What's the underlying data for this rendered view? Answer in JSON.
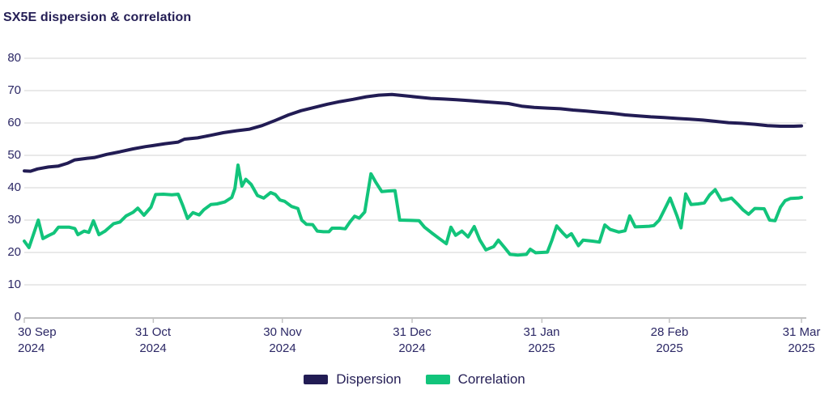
{
  "title": "SX5E dispersion & correlation",
  "colors": {
    "dispersion": "#221c54",
    "correlation": "#12c47b",
    "text": "#2b2765",
    "gridline": "#dcdcdc",
    "axis": "#c2c2c2",
    "background": "#ffffff"
  },
  "legend": {
    "items": [
      "Dispersion",
      "Correlation"
    ]
  },
  "chart_data": {
    "type": "line",
    "title": "SX5E dispersion & correlation",
    "xlabel": "",
    "ylabel": "",
    "ylim": [
      0,
      80
    ],
    "grid": "horizontal",
    "legend_position": "bottom-center",
    "y_ticks": [
      0,
      10,
      20,
      30,
      40,
      50,
      60,
      70,
      80
    ],
    "x_ticks": [
      {
        "line1": "30 Sep",
        "line2": "2024",
        "t": 0.0
      },
      {
        "line1": "31 Oct",
        "line2": "2024",
        "t": 0.166
      },
      {
        "line1": "30 Nov",
        "line2": "2024",
        "t": 0.332
      },
      {
        "line1": "31 Dec",
        "line2": "2024",
        "t": 0.499
      },
      {
        "line1": "31 Jan",
        "line2": "2025",
        "t": 0.666
      },
      {
        "line1": "28 Feb",
        "line2": "2025",
        "t": 0.83
      },
      {
        "line1": "31 Mar",
        "line2": "2025",
        "t": 1.0
      }
    ],
    "series": [
      {
        "name": "Dispersion",
        "color": "#221c54",
        "points": [
          [
            0.0,
            45.2
          ],
          [
            0.008,
            45.1
          ],
          [
            0.017,
            45.8
          ],
          [
            0.031,
            46.4
          ],
          [
            0.044,
            46.7
          ],
          [
            0.056,
            47.6
          ],
          [
            0.065,
            48.6
          ],
          [
            0.081,
            49.1
          ],
          [
            0.09,
            49.3
          ],
          [
            0.106,
            50.3
          ],
          [
            0.123,
            51.1
          ],
          [
            0.14,
            52.0
          ],
          [
            0.156,
            52.7
          ],
          [
            0.165,
            53.0
          ],
          [
            0.181,
            53.6
          ],
          [
            0.198,
            54.1
          ],
          [
            0.206,
            55.0
          ],
          [
            0.223,
            55.4
          ],
          [
            0.24,
            56.2
          ],
          [
            0.256,
            57.0
          ],
          [
            0.273,
            57.6
          ],
          [
            0.29,
            58.1
          ],
          [
            0.306,
            59.2
          ],
          [
            0.323,
            60.8
          ],
          [
            0.34,
            62.5
          ],
          [
            0.356,
            63.8
          ],
          [
            0.373,
            64.8
          ],
          [
            0.39,
            65.8
          ],
          [
            0.406,
            66.6
          ],
          [
            0.423,
            67.3
          ],
          [
            0.44,
            68.1
          ],
          [
            0.456,
            68.6
          ],
          [
            0.473,
            68.8
          ],
          [
            0.49,
            68.4
          ],
          [
            0.506,
            68.0
          ],
          [
            0.523,
            67.6
          ],
          [
            0.54,
            67.4
          ],
          [
            0.556,
            67.2
          ],
          [
            0.573,
            66.9
          ],
          [
            0.59,
            66.6
          ],
          [
            0.606,
            66.3
          ],
          [
            0.623,
            66.0
          ],
          [
            0.64,
            65.2
          ],
          [
            0.656,
            64.8
          ],
          [
            0.673,
            64.6
          ],
          [
            0.69,
            64.4
          ],
          [
            0.706,
            64.0
          ],
          [
            0.723,
            63.7
          ],
          [
            0.74,
            63.3
          ],
          [
            0.756,
            63.0
          ],
          [
            0.773,
            62.5
          ],
          [
            0.79,
            62.2
          ],
          [
            0.806,
            61.9
          ],
          [
            0.823,
            61.7
          ],
          [
            0.84,
            61.4
          ],
          [
            0.856,
            61.2
          ],
          [
            0.873,
            60.9
          ],
          [
            0.89,
            60.5
          ],
          [
            0.906,
            60.1
          ],
          [
            0.923,
            59.9
          ],
          [
            0.94,
            59.6
          ],
          [
            0.956,
            59.2
          ],
          [
            0.973,
            59.0
          ],
          [
            0.99,
            59.0
          ],
          [
            1.0,
            59.1
          ]
        ]
      },
      {
        "name": "Correlation",
        "color": "#12c47b",
        "points": [
          [
            0.0,
            23.5
          ],
          [
            0.006,
            21.5
          ],
          [
            0.018,
            30.0
          ],
          [
            0.024,
            24.3
          ],
          [
            0.031,
            25.2
          ],
          [
            0.038,
            26.0
          ],
          [
            0.044,
            27.8
          ],
          [
            0.058,
            27.8
          ],
          [
            0.065,
            27.4
          ],
          [
            0.069,
            25.5
          ],
          [
            0.077,
            26.6
          ],
          [
            0.083,
            26.2
          ],
          [
            0.089,
            29.8
          ],
          [
            0.096,
            25.5
          ],
          [
            0.104,
            26.6
          ],
          [
            0.115,
            28.9
          ],
          [
            0.123,
            29.4
          ],
          [
            0.131,
            31.3
          ],
          [
            0.14,
            32.4
          ],
          [
            0.146,
            33.7
          ],
          [
            0.154,
            31.5
          ],
          [
            0.163,
            34.0
          ],
          [
            0.169,
            37.9
          ],
          [
            0.179,
            38.0
          ],
          [
            0.19,
            37.8
          ],
          [
            0.198,
            38.0
          ],
          [
            0.204,
            34.5
          ],
          [
            0.21,
            30.5
          ],
          [
            0.217,
            32.3
          ],
          [
            0.225,
            31.6
          ],
          [
            0.231,
            33.2
          ],
          [
            0.24,
            34.8
          ],
          [
            0.248,
            35.0
          ],
          [
            0.258,
            35.6
          ],
          [
            0.267,
            37.0
          ],
          [
            0.271,
            39.8
          ],
          [
            0.275,
            47.0
          ],
          [
            0.28,
            40.5
          ],
          [
            0.285,
            42.6
          ],
          [
            0.292,
            41.0
          ],
          [
            0.3,
            37.6
          ],
          [
            0.308,
            36.8
          ],
          [
            0.317,
            38.5
          ],
          [
            0.323,
            37.9
          ],
          [
            0.329,
            36.2
          ],
          [
            0.335,
            35.8
          ],
          [
            0.344,
            34.2
          ],
          [
            0.352,
            33.6
          ],
          [
            0.357,
            30.0
          ],
          [
            0.363,
            28.7
          ],
          [
            0.371,
            28.6
          ],
          [
            0.377,
            26.6
          ],
          [
            0.385,
            26.4
          ],
          [
            0.392,
            26.4
          ],
          [
            0.396,
            27.5
          ],
          [
            0.406,
            27.5
          ],
          [
            0.413,
            27.3
          ],
          [
            0.419,
            29.4
          ],
          [
            0.425,
            31.2
          ],
          [
            0.431,
            30.6
          ],
          [
            0.438,
            32.5
          ],
          [
            0.446,
            44.3
          ],
          [
            0.452,
            41.8
          ],
          [
            0.46,
            38.8
          ],
          [
            0.469,
            39.0
          ],
          [
            0.477,
            39.1
          ],
          [
            0.483,
            30.0
          ],
          [
            0.498,
            29.9
          ],
          [
            0.508,
            29.8
          ],
          [
            0.515,
            27.8
          ],
          [
            0.524,
            26.1
          ],
          [
            0.534,
            24.3
          ],
          [
            0.543,
            22.7
          ],
          [
            0.549,
            27.8
          ],
          [
            0.555,
            25.3
          ],
          [
            0.563,
            26.6
          ],
          [
            0.571,
            24.8
          ],
          [
            0.579,
            28.0
          ],
          [
            0.586,
            23.9
          ],
          [
            0.594,
            20.8
          ],
          [
            0.604,
            21.8
          ],
          [
            0.61,
            23.8
          ],
          [
            0.618,
            21.5
          ],
          [
            0.625,
            19.4
          ],
          [
            0.635,
            19.2
          ],
          [
            0.646,
            19.4
          ],
          [
            0.651,
            21.0
          ],
          [
            0.658,
            19.9
          ],
          [
            0.673,
            20.1
          ],
          [
            0.679,
            23.8
          ],
          [
            0.685,
            28.2
          ],
          [
            0.693,
            26.0
          ],
          [
            0.698,
            24.8
          ],
          [
            0.704,
            25.8
          ],
          [
            0.713,
            22.1
          ],
          [
            0.719,
            23.8
          ],
          [
            0.731,
            23.5
          ],
          [
            0.74,
            23.2
          ],
          [
            0.747,
            28.5
          ],
          [
            0.754,
            27.1
          ],
          [
            0.765,
            26.3
          ],
          [
            0.773,
            26.7
          ],
          [
            0.779,
            31.3
          ],
          [
            0.786,
            27.9
          ],
          [
            0.796,
            28.0
          ],
          [
            0.804,
            28.1
          ],
          [
            0.81,
            28.3
          ],
          [
            0.817,
            30.0
          ],
          [
            0.823,
            32.9
          ],
          [
            0.831,
            36.8
          ],
          [
            0.84,
            31.2
          ],
          [
            0.845,
            27.6
          ],
          [
            0.851,
            38.1
          ],
          [
            0.858,
            34.8
          ],
          [
            0.867,
            35.0
          ],
          [
            0.875,
            35.3
          ],
          [
            0.882,
            37.8
          ],
          [
            0.889,
            39.4
          ],
          [
            0.897,
            36.1
          ],
          [
            0.904,
            36.4
          ],
          [
            0.91,
            36.8
          ],
          [
            0.918,
            34.9
          ],
          [
            0.925,
            33.1
          ],
          [
            0.932,
            31.8
          ],
          [
            0.94,
            33.6
          ],
          [
            0.952,
            33.5
          ],
          [
            0.959,
            30.0
          ],
          [
            0.966,
            29.8
          ],
          [
            0.973,
            34.0
          ],
          [
            0.979,
            36.0
          ],
          [
            0.986,
            36.7
          ],
          [
            0.996,
            36.8
          ],
          [
            1.0,
            37.0
          ]
        ]
      }
    ]
  }
}
